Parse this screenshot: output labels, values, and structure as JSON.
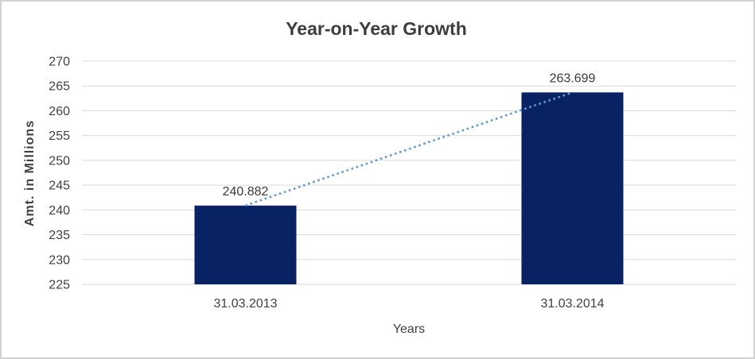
{
  "chart_data": {
    "type": "bar",
    "title": "Year-on-Year Growth",
    "categories": [
      "31.03.2013",
      "31.03.2014"
    ],
    "values": [
      240.882,
      263.699
    ],
    "data_labels": [
      "240.882",
      "263.699"
    ],
    "xlabel": "Years",
    "ylabel": "Amt. in Millions",
    "ylim": [
      225,
      270
    ],
    "ytick_step": 5,
    "yticks": [
      "225",
      "230",
      "235",
      "240",
      "245",
      "250",
      "255",
      "260",
      "265",
      "270"
    ],
    "grid": true,
    "legend": "none",
    "trendline": {
      "style": "dotted",
      "from": 240.882,
      "to": 263.699
    },
    "colors": {
      "bar": "#082263",
      "trendline": "#5b9bd5",
      "gridline": "#d9d9d9",
      "axis_text": "#404040",
      "title_text": "#3d3d3d",
      "data_label_text": "#3a3a3a",
      "border": "#d2d2d2",
      "background": "#ffffff"
    }
  }
}
